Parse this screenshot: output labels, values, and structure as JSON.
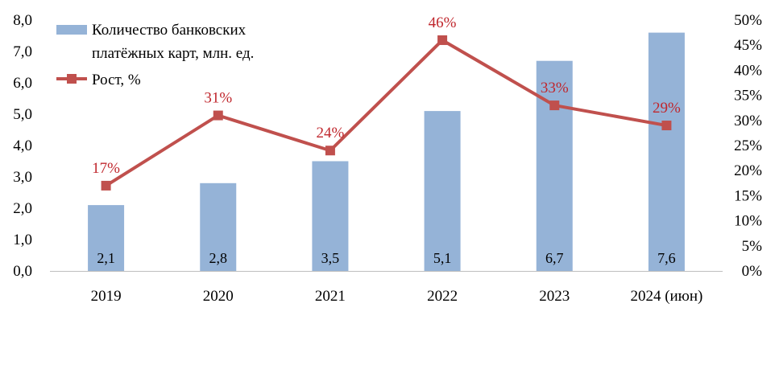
{
  "chart_data": {
    "type": "bar+line",
    "categories": [
      "2019",
      "2020",
      "2021",
      "2022",
      "2023",
      "2024 (июн)"
    ],
    "series": [
      {
        "name": "Количество банковских платёжных карт, млн. ед.",
        "type": "bar",
        "axis": "left",
        "values": [
          2.1,
          2.8,
          3.5,
          5.1,
          6.7,
          7.6
        ],
        "labels": [
          "2,1",
          "2,8",
          "3,5",
          "5,1",
          "6,7",
          "7,6"
        ],
        "color": "#95b3d7"
      },
      {
        "name": "Рост, %",
        "type": "line",
        "axis": "right",
        "values": [
          17,
          31,
          24,
          46,
          33,
          29
        ],
        "labels": [
          "17%",
          "31%",
          "24%",
          "46%",
          "33%",
          "29%"
        ],
        "color": "#c0504d",
        "label_color": "#c0272d"
      }
    ],
    "y_left": {
      "range": [
        0,
        8
      ],
      "ticks": [
        "0,0",
        "1,0",
        "2,0",
        "3,0",
        "4,0",
        "5,0",
        "6,0",
        "7,0",
        "8,0"
      ]
    },
    "y_right": {
      "range": [
        0,
        50
      ],
      "ticks": [
        "0%",
        "5%",
        "10%",
        "15%",
        "20%",
        "25%",
        "30%",
        "35%",
        "40%",
        "45%",
        "50%"
      ]
    },
    "legend": {
      "position": "top-left",
      "bar_lines": [
        "Количество банковских",
        "платёжных карт, млн. ед."
      ],
      "line_text": "Рост, %"
    },
    "grid": false
  }
}
